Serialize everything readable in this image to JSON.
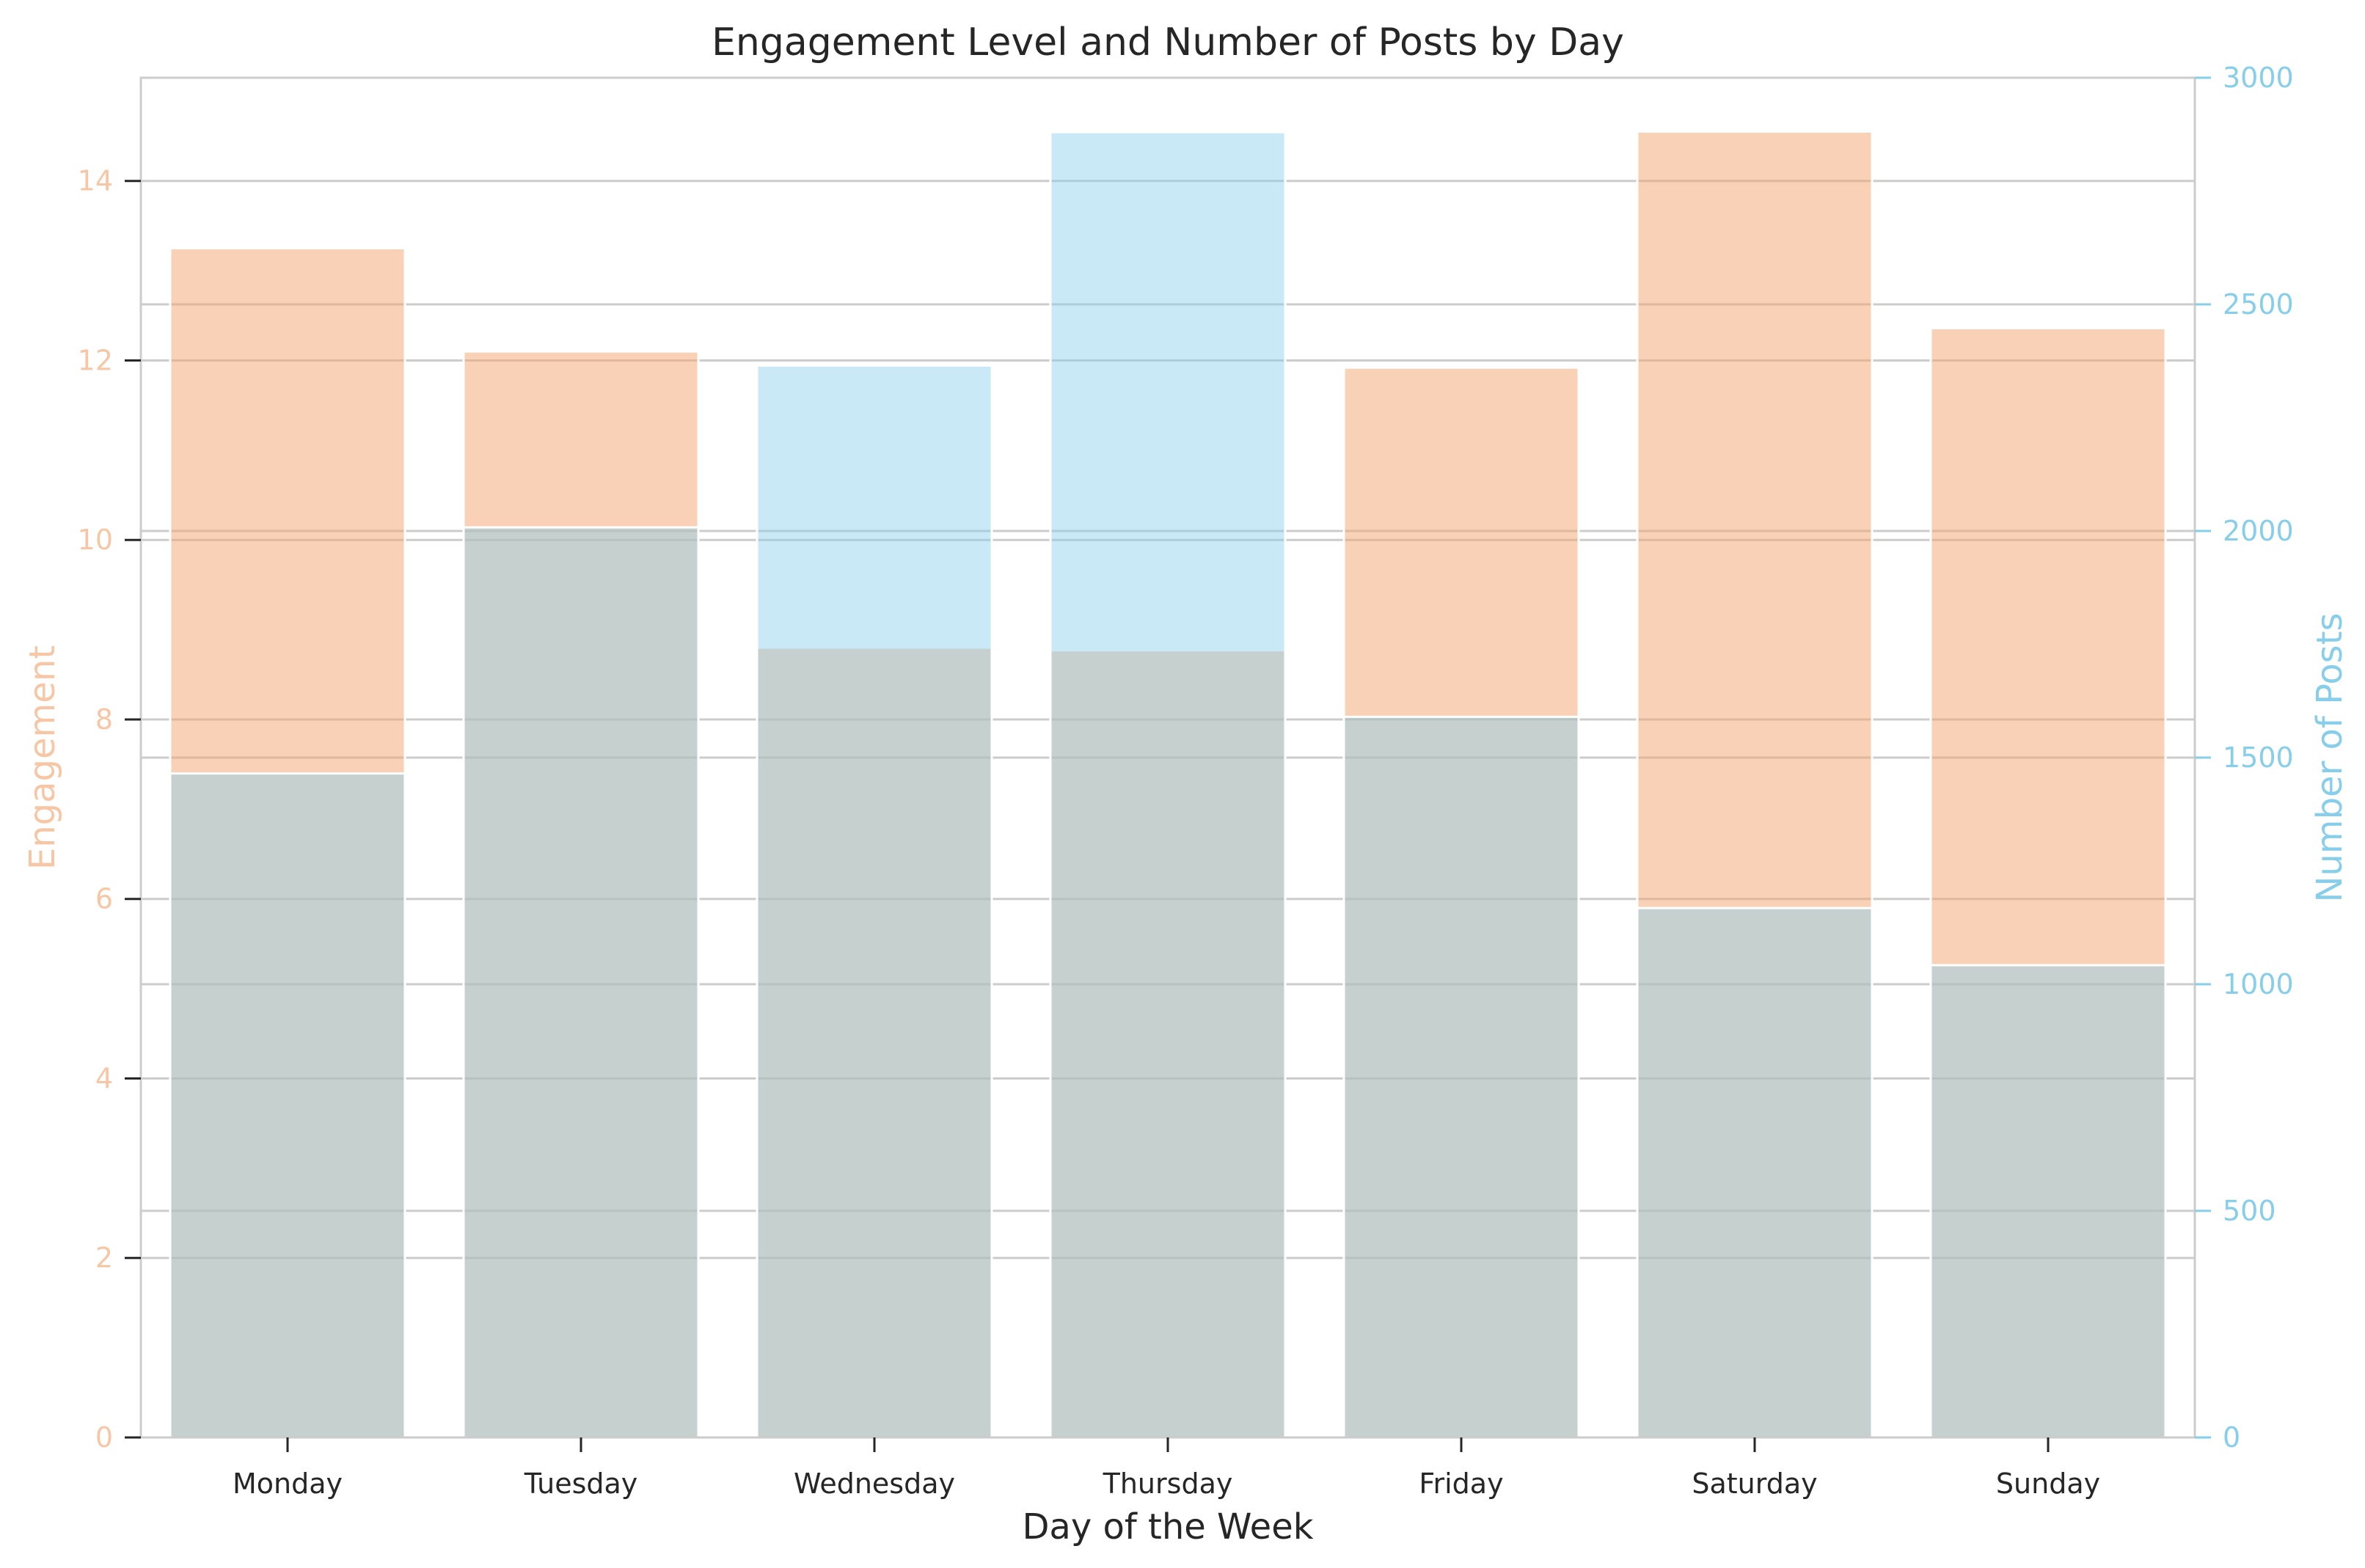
{
  "chart_data": {
    "type": "bar",
    "title": "Engagement Level and Number of Posts by Day",
    "xlabel": "Day of the Week",
    "categories": [
      "Monday",
      "Tuesday",
      "Wednesday",
      "Thursday",
      "Friday",
      "Saturday",
      "Sunday"
    ],
    "grid": true,
    "series": [
      {
        "name": "Engagement",
        "axis": "left",
        "color": "#f4a46f",
        "values": [
          13.25,
          12.1,
          8.8,
          8.77,
          11.92,
          14.55,
          12.36
        ]
      },
      {
        "name": "Number of Posts",
        "axis": "right",
        "color": "#87ceeb",
        "values": [
          1465,
          2008,
          2365,
          2880,
          1590,
          1168,
          1042
        ]
      }
    ],
    "y_left": {
      "label": "Engagement",
      "ylim": [
        0,
        15.15
      ],
      "ticks": [
        0,
        2,
        4,
        6,
        8,
        10,
        12,
        14
      ],
      "label_color": "#f7c6a5"
    },
    "y_right": {
      "label": "Number of Posts",
      "ylim": [
        0,
        3000
      ],
      "ticks": [
        0,
        500,
        1000,
        1500,
        2000,
        2500,
        3000
      ],
      "label_color": "#87ceeb"
    }
  }
}
